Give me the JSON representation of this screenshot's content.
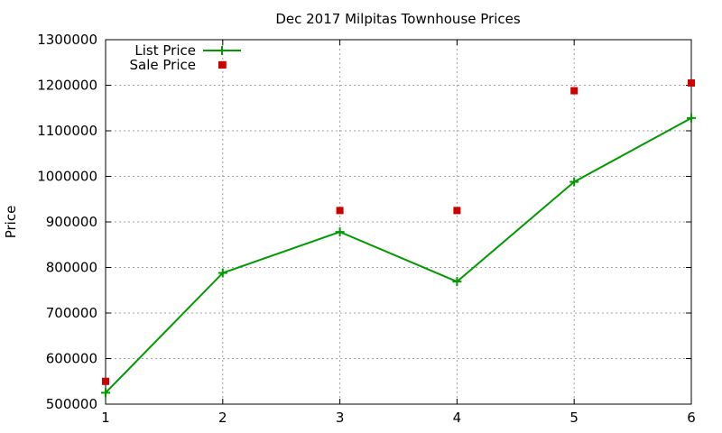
{
  "chart_data": {
    "type": "line",
    "title": "Dec 2017 Milpitas Townhouse Prices",
    "xlabel": "",
    "ylabel": "Price",
    "x": [
      1,
      2,
      3,
      4,
      5,
      6
    ],
    "xlim": [
      1,
      6
    ],
    "ylim": [
      500000,
      1300000
    ],
    "x_ticks": [
      "1",
      "2",
      "3",
      "4",
      "5",
      "6"
    ],
    "y_ticks": [
      "500000",
      "600000",
      "700000",
      "800000",
      "900000",
      "1000000",
      "1100000",
      "1200000",
      "1300000"
    ],
    "grid": true,
    "legend_position": "top-left",
    "series": [
      {
        "name": "List Price",
        "style": "line-with-plus-markers",
        "color": "#009900",
        "values": [
          525000,
          788000,
          878000,
          769000,
          988000,
          1128000
        ]
      },
      {
        "name": "Sale Price",
        "style": "square-markers",
        "color": "#cc0000",
        "values": [
          550000,
          1245000,
          925000,
          925000,
          1188000,
          1205000
        ]
      }
    ]
  }
}
